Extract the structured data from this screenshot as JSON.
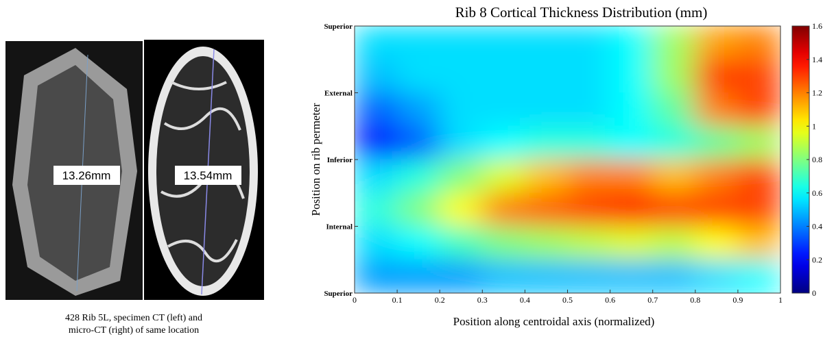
{
  "left_figure": {
    "measurements": [
      "13.26mm",
      "13.54mm"
    ],
    "caption": [
      "428 Rib 5L, specimen CT (left) and",
      "micro-CT (right) of same location"
    ]
  },
  "chart_data": {
    "type": "heatmap",
    "title": "Rib 8 Cortical Thickness Distribution (mm)",
    "x_label": "Position along centroidal axis (normalized)",
    "y_label": "Position on rib permeter",
    "xlim": [
      0,
      1
    ],
    "xticks": [
      0,
      0.1,
      0.2,
      0.3,
      0.4,
      0.5,
      0.6,
      0.7,
      0.8,
      0.9,
      1
    ],
    "ylim": [
      0,
      4
    ],
    "yticks": [
      {
        "value": 0,
        "label": "Superior"
      },
      {
        "value": 1,
        "label": "Internal"
      },
      {
        "value": 2,
        "label": "Inferior"
      },
      {
        "value": 3,
        "label": "External"
      },
      {
        "value": 4,
        "label": "Superior"
      }
    ],
    "colormap": "jet",
    "clim": [
      0,
      1.6
    ],
    "cticks": [
      0,
      0.2,
      0.4,
      0.6,
      0.8,
      1,
      1.2,
      1.4,
      1.6
    ],
    "values": [
      [
        0.55,
        0.55,
        0.55,
        0.55,
        0.55,
        0.55,
        0.6,
        0.85,
        1.15,
        1.2
      ],
      [
        0.5,
        0.55,
        0.55,
        0.55,
        0.55,
        0.55,
        0.6,
        0.85,
        1.3,
        1.3
      ],
      [
        0.35,
        0.45,
        0.55,
        0.55,
        0.55,
        0.55,
        0.6,
        0.75,
        1.2,
        1.3
      ],
      [
        0.2,
        0.35,
        0.55,
        0.6,
        0.65,
        0.65,
        0.6,
        0.65,
        0.75,
        0.85
      ],
      [
        0.55,
        0.65,
        0.8,
        0.95,
        1.1,
        1.2,
        1.2,
        1.1,
        1.2,
        1.3
      ],
      [
        0.65,
        0.8,
        1.0,
        1.2,
        1.25,
        1.3,
        1.35,
        1.3,
        1.3,
        1.3
      ],
      [
        0.55,
        0.6,
        0.7,
        0.8,
        0.85,
        0.9,
        0.95,
        0.9,
        1.0,
        1.1
      ],
      [
        0.45,
        0.45,
        0.45,
        0.5,
        0.5,
        0.5,
        0.5,
        0.5,
        0.55,
        0.6
      ]
    ]
  }
}
